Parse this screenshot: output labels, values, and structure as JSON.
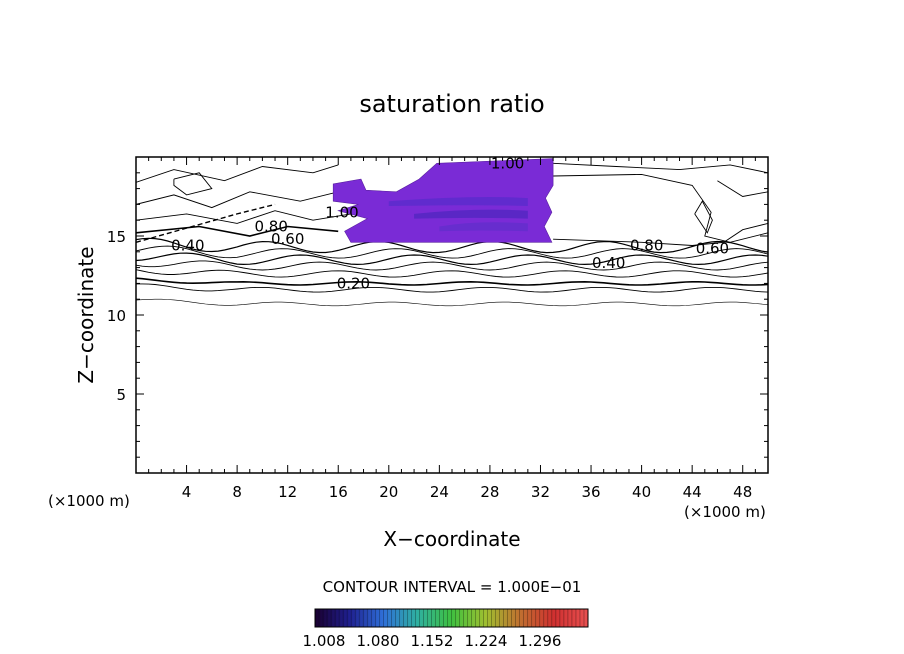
{
  "chart_data": {
    "type": "contour",
    "title": "saturation ratio",
    "xlabel": "X−coordinate",
    "ylabel": "Z−coordinate",
    "x_unit": "(×1000 m)",
    "x_unit_right": "(×1000 m)",
    "xlim": [
      0,
      50
    ],
    "ylim": [
      0,
      20
    ],
    "x_ticks": [
      4,
      8,
      12,
      16,
      20,
      24,
      28,
      32,
      36,
      40,
      44,
      48
    ],
    "y_ticks": [
      5,
      10,
      15
    ],
    "contour_interval_text": "CONTOUR INTERVAL = 1.000E−01",
    "contour_labels": [
      {
        "text": "1.00",
        "x": 29.4,
        "y": 19.6
      },
      {
        "text": "1.00",
        "x": 16.3,
        "y": 16.5
      },
      {
        "text": "0.80",
        "x": 10.7,
        "y": 15.6
      },
      {
        "text": "0.60",
        "x": 12.0,
        "y": 14.8
      },
      {
        "text": "0.40",
        "x": 4.1,
        "y": 14.4
      },
      {
        "text": "0.20",
        "x": 17.2,
        "y": 12.0
      },
      {
        "text": "0.80",
        "x": 40.4,
        "y": 14.4
      },
      {
        "text": "0.60",
        "x": 45.6,
        "y": 14.2
      },
      {
        "text": "0.40",
        "x": 37.4,
        "y": 13.3
      }
    ],
    "supersaturated_region": {
      "x_range": [
        15.5,
        33
      ],
      "z_range": [
        14.6,
        19.9
      ],
      "color": "#7a2bd6"
    },
    "colorbar": {
      "ticks": [
        "1.008",
        "1.080",
        "1.152",
        "1.224",
        "1.296"
      ],
      "colors": [
        "#1a0030",
        "#1f1f8f",
        "#2f6fd8",
        "#2fb0a0",
        "#3fc040",
        "#9fbf30",
        "#c07030",
        "#d03030",
        "#e85050"
      ]
    }
  }
}
